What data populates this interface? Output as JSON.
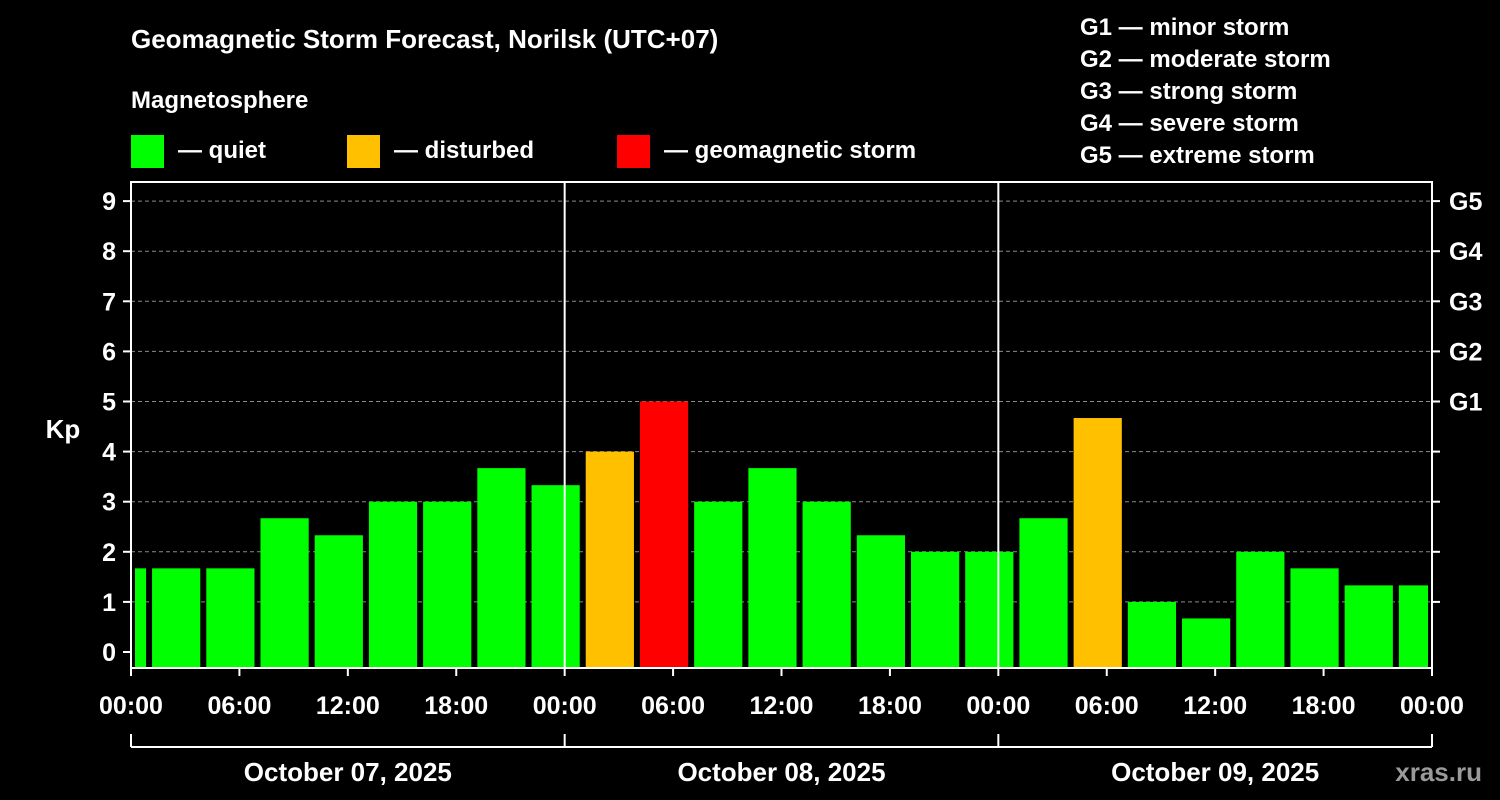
{
  "header": {
    "title": "Geomagnetic Storm Forecast, Norilsk (UTC+07)",
    "subtitle": "Magnetosphere"
  },
  "legend": {
    "items": [
      {
        "label": "— quiet",
        "color": "#00ff00"
      },
      {
        "label": "— disturbed",
        "color": "#ffc000"
      },
      {
        "label": "— geomagnetic storm",
        "color": "#ff0000"
      }
    ]
  },
  "storm_scale": [
    "G1 — minor storm",
    "G2 — moderate storm",
    "G3 — strong storm",
    "G4 — severe storm",
    "G5 — extreme storm"
  ],
  "watermark": "xras.ru",
  "chart_data": {
    "type": "bar",
    "title": "Geomagnetic Storm Forecast, Norilsk (UTC+07)",
    "ylabel": "Kp",
    "ylim": [
      0,
      9
    ],
    "yticks": [
      0,
      1,
      2,
      3,
      4,
      5,
      6,
      7,
      8,
      9
    ],
    "right_axis_ticks": [
      {
        "kp": 5,
        "label": "G1"
      },
      {
        "kp": 6,
        "label": "G2"
      },
      {
        "kp": 7,
        "label": "G3"
      },
      {
        "kp": 8,
        "label": "G4"
      },
      {
        "kp": 9,
        "label": "G5"
      }
    ],
    "grid": true,
    "xlim_hours": [
      0,
      72
    ],
    "xticks": [
      {
        "hour": 0,
        "label": "00:00"
      },
      {
        "hour": 6,
        "label": "06:00"
      },
      {
        "hour": 12,
        "label": "12:00"
      },
      {
        "hour": 18,
        "label": "18:00"
      },
      {
        "hour": 24,
        "label": "00:00"
      },
      {
        "hour": 30,
        "label": "06:00"
      },
      {
        "hour": 36,
        "label": "12:00"
      },
      {
        "hour": 42,
        "label": "18:00"
      },
      {
        "hour": 48,
        "label": "00:00"
      },
      {
        "hour": 54,
        "label": "06:00"
      },
      {
        "hour": 60,
        "label": "12:00"
      },
      {
        "hour": 66,
        "label": "18:00"
      },
      {
        "hour": 72,
        "label": "00:00"
      }
    ],
    "days": [
      {
        "label": "October 07, 2025",
        "start_hour": 0,
        "end_hour": 24
      },
      {
        "label": "October 08, 2025",
        "start_hour": 24,
        "end_hour": 48
      },
      {
        "label": "October 09, 2025",
        "start_hour": 48,
        "end_hour": 72
      }
    ],
    "status_colors": {
      "quiet": "#00ff00",
      "disturbed": "#ffc000",
      "storm": "#ff0000"
    },
    "bars": [
      {
        "start_hour": 0,
        "end_hour": 1,
        "kp": 1.67,
        "status": "quiet"
      },
      {
        "start_hour": 1,
        "end_hour": 4,
        "kp": 1.67,
        "status": "quiet"
      },
      {
        "start_hour": 4,
        "end_hour": 7,
        "kp": 1.67,
        "status": "quiet"
      },
      {
        "start_hour": 7,
        "end_hour": 10,
        "kp": 2.67,
        "status": "quiet"
      },
      {
        "start_hour": 10,
        "end_hour": 13,
        "kp": 2.33,
        "status": "quiet"
      },
      {
        "start_hour": 13,
        "end_hour": 16,
        "kp": 3.0,
        "status": "quiet"
      },
      {
        "start_hour": 16,
        "end_hour": 19,
        "kp": 3.0,
        "status": "quiet"
      },
      {
        "start_hour": 19,
        "end_hour": 22,
        "kp": 3.67,
        "status": "quiet"
      },
      {
        "start_hour": 22,
        "end_hour": 25,
        "kp": 3.33,
        "status": "quiet"
      },
      {
        "start_hour": 25,
        "end_hour": 28,
        "kp": 4.0,
        "status": "disturbed"
      },
      {
        "start_hour": 28,
        "end_hour": 31,
        "kp": 5.0,
        "status": "storm"
      },
      {
        "start_hour": 31,
        "end_hour": 34,
        "kp": 3.0,
        "status": "quiet"
      },
      {
        "start_hour": 34,
        "end_hour": 37,
        "kp": 3.67,
        "status": "quiet"
      },
      {
        "start_hour": 37,
        "end_hour": 40,
        "kp": 3.0,
        "status": "quiet"
      },
      {
        "start_hour": 40,
        "end_hour": 43,
        "kp": 2.33,
        "status": "quiet"
      },
      {
        "start_hour": 43,
        "end_hour": 46,
        "kp": 2.0,
        "status": "quiet"
      },
      {
        "start_hour": 46,
        "end_hour": 49,
        "kp": 2.0,
        "status": "quiet"
      },
      {
        "start_hour": 49,
        "end_hour": 52,
        "kp": 2.67,
        "status": "quiet"
      },
      {
        "start_hour": 52,
        "end_hour": 55,
        "kp": 4.67,
        "status": "disturbed"
      },
      {
        "start_hour": 55,
        "end_hour": 58,
        "kp": 1.0,
        "status": "quiet"
      },
      {
        "start_hour": 58,
        "end_hour": 61,
        "kp": 0.67,
        "status": "quiet"
      },
      {
        "start_hour": 61,
        "end_hour": 64,
        "kp": 2.0,
        "status": "quiet"
      },
      {
        "start_hour": 64,
        "end_hour": 67,
        "kp": 1.67,
        "status": "quiet"
      },
      {
        "start_hour": 67,
        "end_hour": 70,
        "kp": 1.33,
        "status": "quiet"
      },
      {
        "start_hour": 70,
        "end_hour": 72,
        "kp": 1.33,
        "status": "quiet"
      }
    ]
  }
}
